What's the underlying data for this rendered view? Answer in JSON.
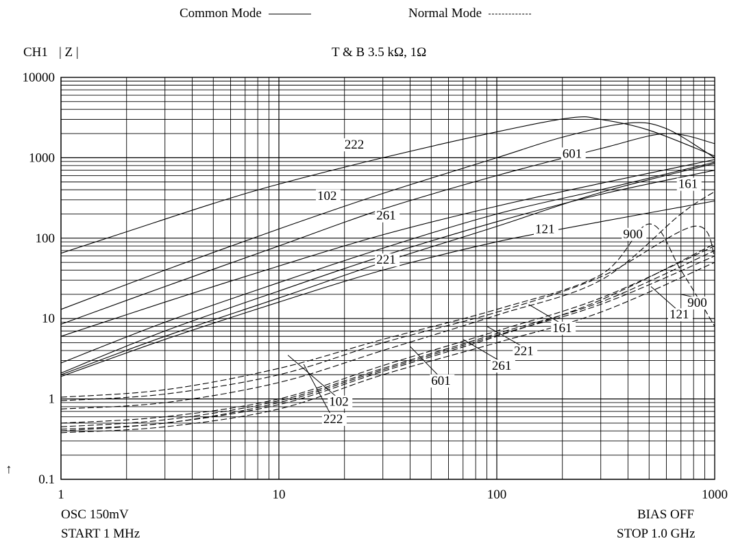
{
  "header": {
    "legend_common": "Common Mode",
    "legend_normal": "Normal Mode",
    "channel": "CH1",
    "measure": "| Z |",
    "condition": "T & B   3.5 kΩ,  1Ω",
    "arrow": "↑"
  },
  "footer": {
    "osc": "OSC  150mV",
    "start": "START  1  MHz",
    "bias": "BIAS OFF",
    "stop": "STOP  1.0  GHz"
  },
  "chart_data": {
    "type": "line",
    "xscale": "log",
    "yscale": "log",
    "xlim": [
      1,
      1000
    ],
    "ylim": [
      0.1,
      10000
    ],
    "grid": true,
    "xticks": [
      {
        "v": 1,
        "label": "1"
      },
      {
        "v": 10,
        "label": "10"
      },
      {
        "v": 100,
        "label": "100"
      },
      {
        "v": 1000,
        "label": "1000"
      }
    ],
    "yticks": [
      {
        "v": 10000,
        "label": "10000"
      },
      {
        "v": 1000,
        "label": "1000"
      },
      {
        "v": 100,
        "label": "100"
      },
      {
        "v": 10,
        "label": "10"
      },
      {
        "v": 1,
        "label": "1"
      },
      {
        "v": 0.1,
        "label": "0.1"
      }
    ],
    "series": [
      {
        "name": "222",
        "mode": "common",
        "x": [
          1,
          2,
          5,
          10,
          30,
          100,
          220,
          300,
          500,
          1000
        ],
        "y": [
          65,
          120,
          270,
          470,
          1000,
          2100,
          3150,
          3000,
          2200,
          1050
        ]
      },
      {
        "name": "601",
        "mode": "common",
        "x": [
          1,
          3,
          10,
          30,
          100,
          200,
          400,
          600,
          1000
        ],
        "y": [
          13,
          40,
          130,
          360,
          1000,
          1800,
          2700,
          2300,
          1000
        ]
      },
      {
        "name": "102",
        "mode": "common",
        "x": [
          1,
          3,
          10,
          30,
          100,
          300,
          600,
          1000
        ],
        "y": [
          8.5,
          25,
          80,
          230,
          600,
          1300,
          2000,
          1500
        ]
      },
      {
        "name": "261",
        "mode": "common",
        "x": [
          1,
          3,
          10,
          30,
          100,
          300,
          1000
        ],
        "y": [
          6,
          16,
          45,
          110,
          250,
          480,
          950
        ]
      },
      {
        "name": "121",
        "mode": "common",
        "x": [
          1,
          3,
          10,
          30,
          100,
          300,
          1000
        ],
        "y": [
          2.8,
          9,
          28,
          75,
          200,
          400,
          880
        ]
      },
      {
        "name": "161",
        "mode": "common",
        "x": [
          1,
          3,
          10,
          30,
          100,
          300,
          1000
        ],
        "y": [
          2.1,
          7,
          22,
          60,
          160,
          350,
          700
        ]
      },
      {
        "name": "221",
        "mode": "common",
        "x": [
          1,
          3,
          10,
          30,
          100,
          300,
          1000
        ],
        "y": [
          2.0,
          6,
          18,
          50,
          140,
          370,
          850
        ]
      },
      {
        "name": "900",
        "mode": "common",
        "x": [
          1,
          3,
          10,
          30,
          100,
          300,
          1000
        ],
        "y": [
          1.9,
          5.5,
          16,
          40,
          90,
          160,
          290
        ]
      },
      {
        "name": "222",
        "mode": "normal",
        "x": [
          1,
          3,
          10,
          30,
          100,
          300,
          500,
          700,
          1000
        ],
        "y": [
          1.05,
          1.3,
          2.4,
          5.5,
          13,
          35,
          150,
          40,
          8
        ]
      },
      {
        "name": "102",
        "mode": "normal",
        "x": [
          1,
          3,
          10,
          30,
          100,
          300,
          700,
          1000
        ],
        "y": [
          0.75,
          0.9,
          1.6,
          4,
          11,
          30,
          200,
          380
        ]
      },
      {
        "name": "601",
        "mode": "normal",
        "x": [
          1,
          3,
          10,
          30,
          100,
          300,
          800,
          1000
        ],
        "y": [
          0.95,
          1.15,
          2,
          5,
          12,
          33,
          140,
          60
        ]
      },
      {
        "name": "261",
        "mode": "normal",
        "x": [
          1,
          3,
          10,
          30,
          100,
          300,
          1000
        ],
        "y": [
          0.5,
          0.6,
          1.0,
          2.6,
          7,
          18,
          80
        ]
      },
      {
        "name": "221",
        "mode": "normal",
        "x": [
          1,
          3,
          10,
          30,
          100,
          300,
          1000
        ],
        "y": [
          0.45,
          0.55,
          0.95,
          2.4,
          6.5,
          16,
          70
        ]
      },
      {
        "name": "161",
        "mode": "normal",
        "x": [
          1,
          3,
          10,
          30,
          100,
          300,
          1000
        ],
        "y": [
          0.42,
          0.5,
          0.9,
          2.3,
          6.2,
          15,
          60
        ]
      },
      {
        "name": "121",
        "mode": "normal",
        "x": [
          1,
          3,
          10,
          30,
          100,
          300,
          1000
        ],
        "y": [
          0.4,
          0.5,
          0.85,
          2.2,
          6,
          17,
          85
        ]
      },
      {
        "name": "900",
        "mode": "normal",
        "x": [
          1,
          3,
          10,
          30,
          100,
          300,
          1000
        ],
        "y": [
          0.38,
          0.45,
          0.75,
          2,
          5,
          12,
          50
        ]
      }
    ],
    "annotations": [
      {
        "text": "222",
        "x": 20,
        "y": 1300,
        "ax": null,
        "ay": null
      },
      {
        "text": "601",
        "x": 200,
        "y": 1000,
        "ax": null,
        "ay": null
      },
      {
        "text": "102",
        "x": 15,
        "y": 300,
        "ax": null,
        "ay": null
      },
      {
        "text": "261",
        "x": 28,
        "y": 170,
        "ax": null,
        "ay": null
      },
      {
        "text": "161",
        "x": 680,
        "y": 420,
        "ax": null,
        "ay": null
      },
      {
        "text": "121",
        "x": 150,
        "y": 115,
        "ax": null,
        "ay": null
      },
      {
        "text": "900",
        "x": 380,
        "y": 100,
        "ax": null,
        "ay": null
      },
      {
        "text": "221",
        "x": 28,
        "y": 48,
        "ax": null,
        "ay": null
      },
      {
        "text": "121",
        "x": 620,
        "y": 10,
        "ax": 510,
        "ay": 25
      },
      {
        "text": "900",
        "x": 750,
        "y": 14,
        "ax": 700,
        "ay": 20
      },
      {
        "text": "161",
        "x": 180,
        "y": 6.8,
        "ax": 140,
        "ay": 15
      },
      {
        "text": "221",
        "x": 120,
        "y": 3.5,
        "ax": 90,
        "ay": 8
      },
      {
        "text": "261",
        "x": 95,
        "y": 2.3,
        "ax": 70,
        "ay": 5.5
      },
      {
        "text": "601",
        "x": 50,
        "y": 1.5,
        "ax": 40,
        "ay": 4.5
      },
      {
        "text": "102",
        "x": 17,
        "y": 0.82,
        "ax": 11,
        "ay": 3.5
      },
      {
        "text": "222",
        "x": 16,
        "y": 0.5,
        "ax": 13,
        "ay": 2.7
      }
    ]
  }
}
